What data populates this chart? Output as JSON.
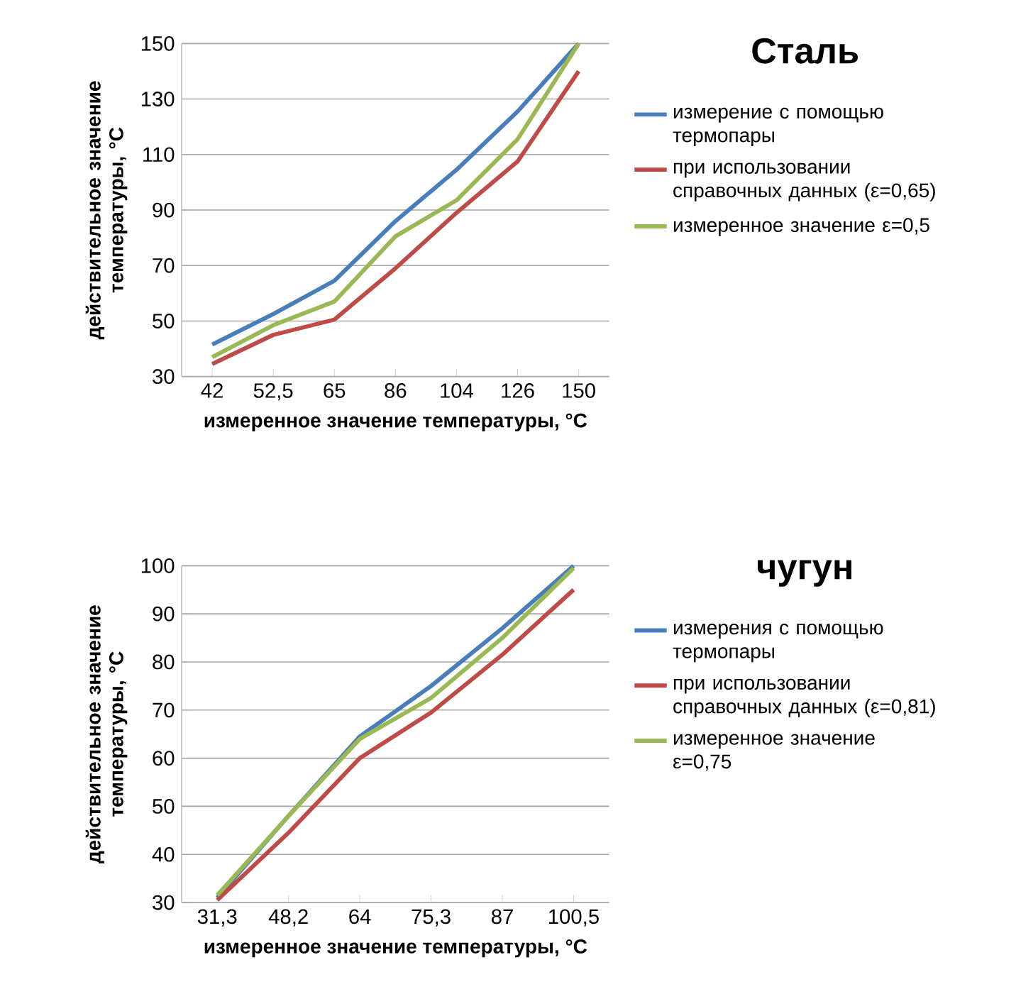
{
  "chart_data": [
    {
      "type": "line",
      "legend_title": "Сталь",
      "xlabel": "измеренное значение температуры, °C",
      "ylabel": "действительное значение температуры, °C",
      "categories": [
        "42",
        "52,5",
        "65",
        "86",
        "104",
        "126",
        "150"
      ],
      "series": [
        {
          "name": "измерение с помощью термопары",
          "color": "#4a7ebb",
          "values": [
            41.5,
            52.5,
            64.5,
            86,
            104.5,
            125.5,
            150
          ]
        },
        {
          "name": "при использовании справочных данных (ε=0,65)",
          "color": "#be4b48",
          "values": [
            34.5,
            45,
            50.5,
            69,
            89,
            107.5,
            140
          ]
        },
        {
          "name": "измеренное значение ε=0,5",
          "color": "#98b954",
          "values": [
            37,
            48.5,
            57,
            80.5,
            93.5,
            115.5,
            150
          ]
        }
      ],
      "ylim": [
        30,
        150
      ],
      "yticks": [
        30,
        50,
        70,
        90,
        110,
        130,
        150
      ],
      "grid": "y",
      "legend": "right"
    },
    {
      "type": "line",
      "legend_title": "чугун",
      "xlabel": "измеренное значение температуры, °C",
      "ylabel": "действительное значение температуры, °C",
      "categories": [
        "31,3",
        "48,2",
        "64",
        "75,3",
        "87",
        "100,5"
      ],
      "series": [
        {
          "name": "измерения с помощью термопары",
          "color": "#4a7ebb",
          "values": [
            31,
            48,
            64.5,
            75,
            87,
            100
          ]
        },
        {
          "name": "при использовании справочных данных (ε=0,81)",
          "color": "#be4b48",
          "values": [
            30.5,
            44.5,
            60,
            69.5,
            81.5,
            95
          ]
        },
        {
          "name": "измеренное значение ε=0,75",
          "color": "#98b954",
          "values": [
            31.5,
            48,
            64,
            72.5,
            85,
            99.5
          ]
        }
      ],
      "ylim": [
        30,
        100
      ],
      "yticks": [
        30,
        40,
        50,
        60,
        70,
        80,
        90,
        100
      ],
      "grid": "y",
      "legend": "right"
    }
  ]
}
